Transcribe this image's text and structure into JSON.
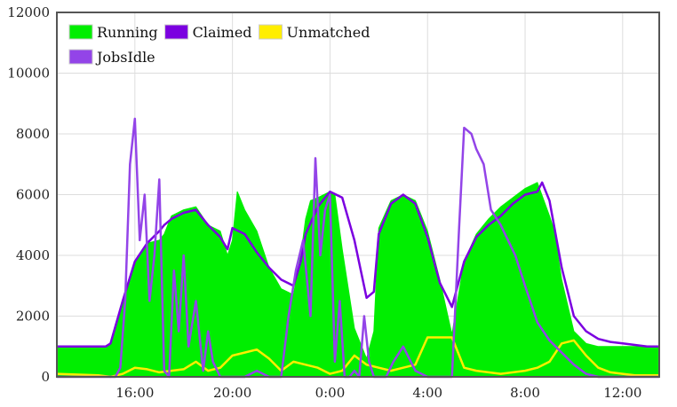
{
  "chart_data": {
    "type": "area",
    "title": "",
    "xlabel": "",
    "ylabel": "",
    "x_unit": "hour of day (continuous from ~12:45 to ~13:30 next day)",
    "xlim": [
      12.8,
      37.5
    ],
    "ylim": [
      0,
      12000
    ],
    "y_ticks": [
      0,
      2000,
      4000,
      6000,
      8000,
      10000,
      12000
    ],
    "y_tick_labels": [
      "0",
      "2000",
      "4000",
      "6000",
      "8000",
      "10000",
      "12000"
    ],
    "x_ticks": [
      16,
      20,
      24,
      28,
      32,
      36
    ],
    "x_tick_labels": [
      "16:00",
      "20:00",
      "0:00",
      "4:00",
      "8:00",
      "12:00"
    ],
    "grid": true,
    "legend_position": "top-left",
    "series": [
      {
        "name": "Running",
        "color": "#00ee00",
        "style": "filled-area",
        "x": [
          12.8,
          14.8,
          15.0,
          15.5,
          16.0,
          16.5,
          17.0,
          17.2,
          17.5,
          18.0,
          18.5,
          19.0,
          19.5,
          19.8,
          20.0,
          20.2,
          20.5,
          21.0,
          21.5,
          22.0,
          22.5,
          22.8,
          23.0,
          23.2,
          23.5,
          24.0,
          24.2,
          24.5,
          25.0,
          25.5,
          25.8,
          26.0,
          26.5,
          27.0,
          27.5,
          28.0,
          28.5,
          29.0,
          29.5,
          30.0,
          30.5,
          31.0,
          31.5,
          32.0,
          32.5,
          33.0,
          33.2,
          33.5,
          34.0,
          34.5,
          35.0,
          35.5,
          36.0,
          36.5,
          37.0,
          37.5
        ],
        "values": [
          1000,
          1000,
          1100,
          2500,
          3800,
          4400,
          4500,
          4700,
          5300,
          5500,
          5600,
          5000,
          4800,
          4000,
          4500,
          6100,
          5500,
          4800,
          3600,
          2900,
          2700,
          4000,
          5200,
          5800,
          5900,
          6100,
          6000,
          4200,
          1600,
          600,
          1500,
          4900,
          5800,
          6000,
          5800,
          4800,
          3200,
          1400,
          3800,
          4700,
          5200,
          5600,
          5900,
          6200,
          6400,
          5300,
          4800,
          3200,
          1500,
          1100,
          1000,
          1000,
          1000,
          1000,
          1000,
          1000
        ]
      },
      {
        "name": "Claimed",
        "color": "#7b00e0",
        "style": "line",
        "x": [
          12.8,
          14.8,
          15.0,
          15.5,
          16.0,
          16.5,
          17.0,
          17.2,
          17.5,
          18.0,
          18.5,
          19.0,
          19.5,
          19.8,
          20.0,
          20.5,
          21.0,
          21.5,
          22.0,
          22.5,
          22.8,
          23.0,
          23.5,
          24.0,
          24.5,
          25.0,
          25.5,
          25.8,
          26.0,
          26.5,
          27.0,
          27.5,
          28.0,
          28.5,
          29.0,
          29.5,
          30.0,
          30.5,
          31.0,
          31.5,
          32.0,
          32.5,
          32.7,
          33.0,
          33.5,
          34.0,
          34.5,
          35.0,
          35.5,
          36.0,
          36.5,
          37.0,
          37.5
        ],
        "values": [
          1000,
          1000,
          1100,
          2500,
          3800,
          4400,
          4800,
          5000,
          5200,
          5400,
          5500,
          5000,
          4600,
          4200,
          4900,
          4700,
          4100,
          3600,
          3200,
          3000,
          3800,
          4700,
          5600,
          6100,
          5900,
          4500,
          2600,
          2800,
          4700,
          5700,
          6000,
          5700,
          4600,
          3100,
          2300,
          3800,
          4600,
          5000,
          5300,
          5700,
          6000,
          6100,
          6400,
          5800,
          3600,
          2000,
          1500,
          1250,
          1150,
          1100,
          1050,
          1000,
          1000
        ]
      },
      {
        "name": "Unmatched",
        "color": "#ffee00",
        "style": "line",
        "x": [
          12.8,
          14.5,
          15.0,
          15.5,
          16.0,
          16.5,
          17.0,
          17.5,
          18.0,
          18.5,
          19.0,
          19.5,
          20.0,
          20.5,
          21.0,
          21.5,
          22.0,
          22.5,
          23.0,
          23.5,
          24.0,
          24.5,
          25.0,
          25.5,
          26.0,
          26.5,
          27.0,
          27.5,
          28.0,
          28.5,
          29.0,
          29.5,
          30.0,
          30.5,
          31.0,
          31.5,
          32.0,
          32.5,
          33.0,
          33.5,
          34.0,
          34.5,
          35.0,
          35.5,
          36.0,
          36.5,
          37.0,
          37.5
        ],
        "values": [
          100,
          50,
          0,
          100,
          300,
          250,
          150,
          200,
          250,
          500,
          200,
          300,
          700,
          800,
          900,
          600,
          200,
          500,
          400,
          300,
          100,
          200,
          700,
          400,
          300,
          200,
          300,
          400,
          1300,
          1300,
          1300,
          300,
          200,
          150,
          100,
          150,
          200,
          300,
          500,
          1100,
          1200,
          700,
          300,
          150,
          100,
          50,
          50,
          50
        ]
      },
      {
        "name": "JobsIdle",
        "color": "#9344e8",
        "style": "line",
        "x": [
          12.8,
          14.8,
          15.2,
          15.4,
          15.6,
          15.8,
          16.0,
          16.2,
          16.4,
          16.6,
          16.8,
          17.0,
          17.2,
          17.4,
          17.6,
          17.8,
          18.0,
          18.2,
          18.5,
          18.8,
          19.0,
          19.2,
          19.5,
          20.0,
          20.5,
          21.0,
          21.5,
          22.0,
          22.3,
          22.6,
          22.9,
          23.2,
          23.4,
          23.6,
          23.8,
          24.0,
          24.2,
          24.4,
          24.6,
          24.8,
          25.0,
          25.2,
          25.4,
          25.6,
          25.8,
          26.0,
          26.3,
          26.6,
          27.0,
          27.5,
          28.0,
          28.5,
          29.0,
          29.3,
          29.5,
          29.8,
          30.0,
          30.3,
          30.6,
          31.0,
          31.3,
          31.6,
          32.0,
          32.5,
          33.0,
          33.5,
          34.0,
          34.5,
          35.0,
          35.5,
          36.0,
          36.5,
          37.0,
          37.5
        ],
        "values": [
          0,
          0,
          0,
          300,
          2500,
          7000,
          8500,
          4500,
          6000,
          2500,
          4000,
          6500,
          200,
          0,
          3500,
          1500,
          4000,
          1000,
          2500,
          200,
          1500,
          500,
          0,
          0,
          0,
          200,
          0,
          0,
          2000,
          3500,
          4500,
          2000,
          7200,
          4000,
          5500,
          6000,
          500,
          2500,
          0,
          0,
          200,
          0,
          2000,
          500,
          0,
          0,
          0,
          500,
          1000,
          200,
          0,
          0,
          0,
          5000,
          8200,
          8000,
          7500,
          7000,
          5500,
          5000,
          4500,
          4000,
          3000,
          1800,
          1200,
          800,
          400,
          100,
          0,
          0,
          0,
          0,
          0,
          0
        ]
      }
    ]
  }
}
